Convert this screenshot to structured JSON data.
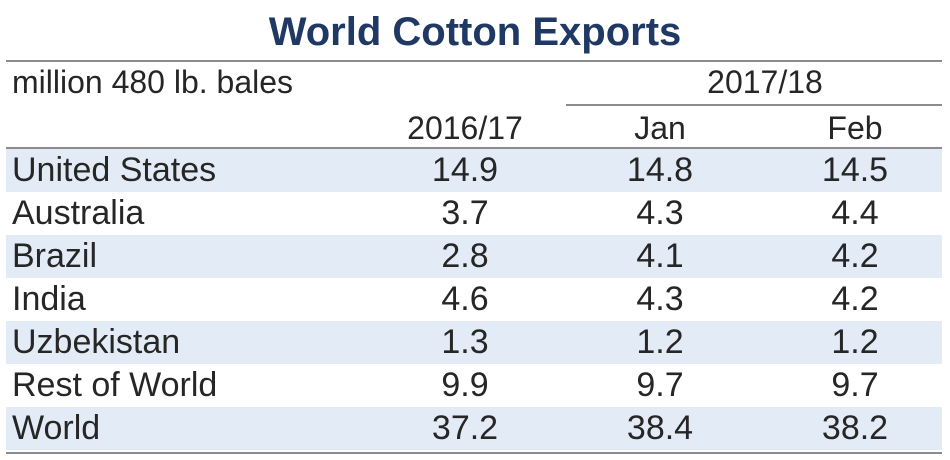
{
  "chart_data": {
    "type": "table",
    "title": "World Cotton Exports",
    "unit_label": "million 480 lb. bales",
    "period_label": "2017/18",
    "columns": [
      "2016/17",
      "Jan",
      "Feb"
    ],
    "rows": [
      {
        "name": "United States",
        "values": [
          "14.9",
          "14.8",
          "14.5"
        ]
      },
      {
        "name": "Australia",
        "values": [
          "3.7",
          "4.3",
          "4.4"
        ]
      },
      {
        "name": "Brazil",
        "values": [
          "2.8",
          "4.1",
          "4.2"
        ]
      },
      {
        "name": "India",
        "values": [
          "4.6",
          "4.3",
          "4.2"
        ]
      },
      {
        "name": "Uzbekistan",
        "values": [
          "1.3",
          "1.2",
          "1.2"
        ]
      },
      {
        "name": "Rest of World",
        "values": [
          "9.9",
          "9.7",
          "9.7"
        ]
      },
      {
        "name": "World",
        "values": [
          "37.2",
          "38.4",
          "38.2"
        ]
      }
    ]
  },
  "colors": {
    "title": "#1f3864",
    "row_shade": "#e3ebf7",
    "rule": "#8c8c8c"
  }
}
